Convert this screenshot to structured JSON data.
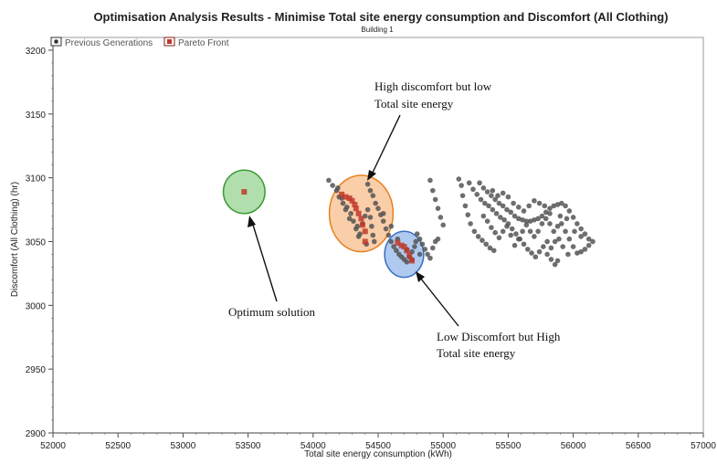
{
  "chart_data": {
    "type": "scatter",
    "title": "Optimisation Analysis Results - Minimise Total site energy consumption and Discomfort (All Clothing)",
    "subtitle": "Building 1",
    "xlabel": "Total site energy consumption (kWh)",
    "ylabel": "Discomfort (All Clothing) (hr)",
    "xlim": [
      52000,
      57000
    ],
    "ylim": [
      2900,
      3210
    ],
    "x_ticks": [
      "52000",
      "52500",
      "53000",
      "53500",
      "54000",
      "54500",
      "55000",
      "55500",
      "56000",
      "56500",
      "57000"
    ],
    "y_ticks": [
      "2900",
      "2950",
      "3000",
      "3050",
      "3100",
      "3150",
      "3200"
    ],
    "grid": false,
    "legend": {
      "position": "top-left",
      "entries": [
        "Previous Generations",
        "Pareto Front"
      ]
    },
    "colors": {
      "previous": "#555555",
      "pareto": "#c0392b"
    },
    "series": [
      {
        "name": "Previous Generations",
        "marker": "circle",
        "points": [
          [
            54120,
            3098
          ],
          [
            54150,
            3094
          ],
          [
            54180,
            3090
          ],
          [
            54200,
            3085
          ],
          [
            54230,
            3080
          ],
          [
            54260,
            3077
          ],
          [
            54290,
            3072
          ],
          [
            54310,
            3066
          ],
          [
            54340,
            3062
          ],
          [
            54360,
            3056
          ],
          [
            54380,
            3064
          ],
          [
            54400,
            3070
          ],
          [
            54420,
            3075
          ],
          [
            54440,
            3069
          ],
          [
            54450,
            3062
          ],
          [
            54460,
            3055
          ],
          [
            54470,
            3050
          ],
          [
            54220,
            3084
          ],
          [
            54250,
            3075
          ],
          [
            54280,
            3068
          ],
          [
            54190,
            3092
          ],
          [
            54330,
            3060
          ],
          [
            54350,
            3054
          ],
          [
            54410,
            3048
          ],
          [
            54420,
            3095
          ],
          [
            54440,
            3090
          ],
          [
            54460,
            3086
          ],
          [
            54480,
            3080
          ],
          [
            54500,
            3076
          ],
          [
            54520,
            3071
          ],
          [
            54540,
            3066
          ],
          [
            54560,
            3060
          ],
          [
            54580,
            3055
          ],
          [
            54600,
            3050
          ],
          [
            54620,
            3046
          ],
          [
            54640,
            3043
          ],
          [
            54660,
            3040
          ],
          [
            54680,
            3038
          ],
          [
            54700,
            3036
          ],
          [
            54720,
            3034
          ],
          [
            54740,
            3038
          ],
          [
            54760,
            3042
          ],
          [
            54780,
            3046
          ],
          [
            54790,
            3050
          ],
          [
            54800,
            3056
          ],
          [
            54820,
            3052
          ],
          [
            54840,
            3048
          ],
          [
            54860,
            3044
          ],
          [
            54880,
            3040
          ],
          [
            54900,
            3037
          ],
          [
            54920,
            3045
          ],
          [
            54940,
            3050
          ],
          [
            54960,
            3052
          ],
          [
            54540,
            3072
          ],
          [
            54600,
            3062
          ],
          [
            54650,
            3052
          ],
          [
            54720,
            3044
          ],
          [
            54760,
            3036
          ],
          [
            54820,
            3040
          ],
          [
            54900,
            3098
          ],
          [
            54920,
            3090
          ],
          [
            54940,
            3083
          ],
          [
            54960,
            3076
          ],
          [
            54980,
            3069
          ],
          [
            55000,
            3063
          ],
          [
            55120,
            3099
          ],
          [
            55140,
            3094
          ],
          [
            55150,
            3086
          ],
          [
            55170,
            3078
          ],
          [
            55190,
            3071
          ],
          [
            55210,
            3064
          ],
          [
            55240,
            3058
          ],
          [
            55270,
            3054
          ],
          [
            55300,
            3051
          ],
          [
            55330,
            3048
          ],
          [
            55360,
            3045
          ],
          [
            55390,
            3043
          ],
          [
            55200,
            3096
          ],
          [
            55230,
            3091
          ],
          [
            55260,
            3087
          ],
          [
            55290,
            3083
          ],
          [
            55320,
            3080
          ],
          [
            55350,
            3078
          ],
          [
            55380,
            3075
          ],
          [
            55410,
            3072
          ],
          [
            55440,
            3069
          ],
          [
            55470,
            3067
          ],
          [
            55500,
            3064
          ],
          [
            55530,
            3060
          ],
          [
            55560,
            3056
          ],
          [
            55590,
            3052
          ],
          [
            55620,
            3048
          ],
          [
            55650,
            3044
          ],
          [
            55680,
            3041
          ],
          [
            55710,
            3038
          ],
          [
            55740,
            3042
          ],
          [
            55770,
            3046
          ],
          [
            55800,
            3040
          ],
          [
            55830,
            3036
          ],
          [
            55860,
            3032
          ],
          [
            55880,
            3035
          ],
          [
            55280,
            3096
          ],
          [
            55310,
            3092
          ],
          [
            55340,
            3089
          ],
          [
            55370,
            3086
          ],
          [
            55400,
            3083
          ],
          [
            55430,
            3080
          ],
          [
            55460,
            3078
          ],
          [
            55490,
            3075
          ],
          [
            55520,
            3073
          ],
          [
            55550,
            3070
          ],
          [
            55580,
            3068
          ],
          [
            55610,
            3067
          ],
          [
            55640,
            3066
          ],
          [
            55670,
            3066
          ],
          [
            55700,
            3067
          ],
          [
            55730,
            3068
          ],
          [
            55760,
            3070
          ],
          [
            55790,
            3073
          ],
          [
            55820,
            3076
          ],
          [
            55850,
            3078
          ],
          [
            55880,
            3079
          ],
          [
            55910,
            3080
          ],
          [
            55940,
            3078
          ],
          [
            55970,
            3074
          ],
          [
            56000,
            3069
          ],
          [
            56030,
            3064
          ],
          [
            56060,
            3060
          ],
          [
            56090,
            3056
          ],
          [
            56120,
            3052
          ],
          [
            56150,
            3050
          ],
          [
            56120,
            3047
          ],
          [
            56090,
            3044
          ],
          [
            56060,
            3042
          ],
          [
            56030,
            3041
          ],
          [
            56000,
            3046
          ],
          [
            55970,
            3052
          ],
          [
            55940,
            3058
          ],
          [
            55910,
            3064
          ],
          [
            55880,
            3062
          ],
          [
            55850,
            3058
          ],
          [
            55820,
            3064
          ],
          [
            55790,
            3068
          ],
          [
            55760,
            3064
          ],
          [
            55730,
            3058
          ],
          [
            55700,
            3054
          ],
          [
            55670,
            3058
          ],
          [
            55640,
            3063
          ],
          [
            55610,
            3058
          ],
          [
            55580,
            3052
          ],
          [
            55550,
            3047
          ],
          [
            55520,
            3055
          ],
          [
            55490,
            3062
          ],
          [
            55460,
            3058
          ],
          [
            55430,
            3053
          ],
          [
            55400,
            3057
          ],
          [
            55370,
            3061
          ],
          [
            55340,
            3066
          ],
          [
            55310,
            3070
          ],
          [
            55380,
            3090
          ],
          [
            55420,
            3086
          ],
          [
            55460,
            3088
          ],
          [
            55500,
            3085
          ],
          [
            55540,
            3080
          ],
          [
            55580,
            3077
          ],
          [
            55620,
            3074
          ],
          [
            55660,
            3078
          ],
          [
            55700,
            3082
          ],
          [
            55740,
            3080
          ],
          [
            55780,
            3078
          ],
          [
            55820,
            3072
          ],
          [
            55900,
            3070
          ],
          [
            55950,
            3068
          ],
          [
            56010,
            3058
          ],
          [
            56060,
            3054
          ],
          [
            55960,
            3040
          ],
          [
            55920,
            3046
          ],
          [
            55890,
            3052
          ],
          [
            55860,
            3050
          ],
          [
            55830,
            3045
          ],
          [
            55800,
            3050
          ]
        ]
      },
      {
        "name": "Pareto Front",
        "marker": "square",
        "points": [
          [
            53470,
            3089
          ],
          [
            54220,
            3087
          ],
          [
            54250,
            3085
          ],
          [
            54280,
            3084
          ],
          [
            54300,
            3082
          ],
          [
            54320,
            3079
          ],
          [
            54330,
            3076
          ],
          [
            54350,
            3072
          ],
          [
            54370,
            3068
          ],
          [
            54380,
            3063
          ],
          [
            54400,
            3058
          ],
          [
            54400,
            3050
          ],
          [
            54650,
            3049
          ],
          [
            54680,
            3047
          ],
          [
            54700,
            3046
          ],
          [
            54720,
            3043
          ],
          [
            54740,
            3039
          ],
          [
            54760,
            3035
          ]
        ]
      }
    ],
    "highlights": [
      {
        "label": "Optimum solution",
        "x": 53470,
        "y": 3089,
        "rx": 160,
        "ry": 17,
        "fill": "#8fd18a",
        "stroke": "#3c9a35"
      },
      {
        "label": "High discomfort but low Total site energy",
        "x": 54370,
        "y": 3072,
        "rx": 245,
        "ry": 30,
        "fill": "#f8b984",
        "stroke": "#e8801f"
      },
      {
        "label": "Low Discomfort but High Total site energy",
        "x": 54700,
        "y": 3040,
        "rx": 150,
        "ry": 18,
        "fill": "#8fb4e8",
        "stroke": "#3b6fc2"
      }
    ],
    "annotations": [
      {
        "lines": [
          "High discomfort but low",
          "Total site energy"
        ],
        "points_to": "High discomfort but low Total site energy"
      },
      {
        "lines": [
          "Optimum solution"
        ],
        "points_to": "Optimum solution"
      },
      {
        "lines": [
          "Low Discomfort but High",
          "Total site energy"
        ],
        "points_to": "Low Discomfort but High Total site energy"
      }
    ]
  }
}
